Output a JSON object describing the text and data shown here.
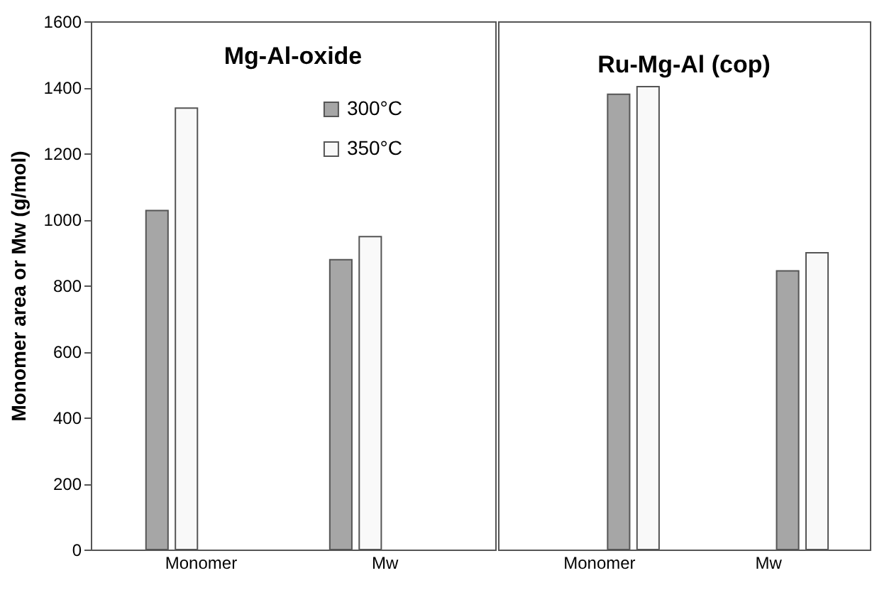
{
  "chart_data": [
    {
      "type": "bar",
      "title": "Mg-Al-oxide",
      "ylabel": "Monomer area or Mw (g/mol)",
      "categories": [
        "Monomer",
        "Mw"
      ],
      "series": [
        {
          "name": "300°C",
          "color": "#a6a6a6",
          "values": [
            1027,
            878
          ]
        },
        {
          "name": "350°C",
          "color": "#f9f9f9",
          "values": [
            1337,
            948
          ]
        }
      ],
      "ylim": [
        0,
        1600
      ],
      "yticks": [
        0,
        200,
        400,
        600,
        800,
        1000,
        1200,
        1400,
        1600
      ],
      "grid": false,
      "legend": "top right"
    },
    {
      "type": "bar",
      "title": "Ru-Mg-Al (cop)",
      "categories": [
        "Monomer",
        "Mw"
      ],
      "series": [
        {
          "color": "#a6a6a6",
          "values": [
            1379,
            844
          ]
        },
        {
          "color": "#f9f9f9",
          "values": [
            1402,
            899
          ]
        }
      ],
      "ylim": [
        0,
        1600
      ],
      "yticks": [
        0,
        200,
        400,
        600,
        800,
        1000,
        1200,
        1400,
        1600
      ],
      "grid": false,
      "tick_labels": "x"
    }
  ]
}
